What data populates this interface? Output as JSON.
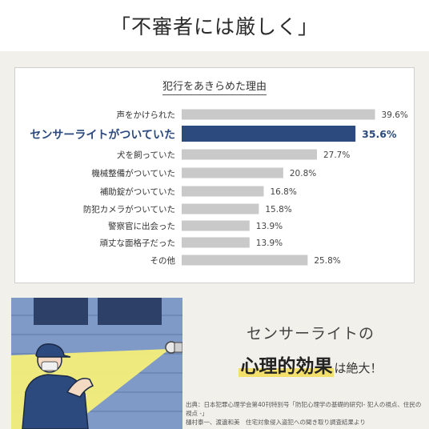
{
  "header": {
    "title": "「不審者には厳しく」"
  },
  "chart_data": {
    "type": "bar",
    "orientation": "horizontal",
    "title": "犯行をあきらめた理由",
    "categories": [
      "声をかけられた",
      "センサーライトがついていた",
      "犬を飼っていた",
      "機械整備がついていた",
      "補助錠がついていた",
      "防犯カメラがついていた",
      "警察官に出会った",
      "頑丈な面格子だった",
      "その他"
    ],
    "values": [
      39.6,
      35.6,
      27.7,
      20.8,
      16.8,
      15.8,
      13.9,
      13.9,
      25.8
    ],
    "value_labels": [
      "39.6%",
      "35.6%",
      "27.7%",
      "20.8%",
      "16.8%",
      "15.8%",
      "13.9%",
      "13.9%",
      "25.8%"
    ],
    "highlight_index": 1,
    "xlim": [
      0,
      40
    ],
    "grid": false,
    "colors": {
      "bar": "#c9c9c9",
      "highlight": "#2c4a7e",
      "highlight_text": "#2c4a7e"
    }
  },
  "promo": {
    "line1": "センサーライトの",
    "highlight": "心理的効果",
    "line2_suffix": "は絶大！"
  },
  "source": {
    "line1": "出典：日本犯罪心理学会第40刊特別号「防犯心理学の基礎的研究Ⅰ- 犯人の視点、住民の視点 -」",
    "line2": "樋村泰一、渡邊和美　住宅対象侵入盗犯への聞き取り調査結果より"
  }
}
